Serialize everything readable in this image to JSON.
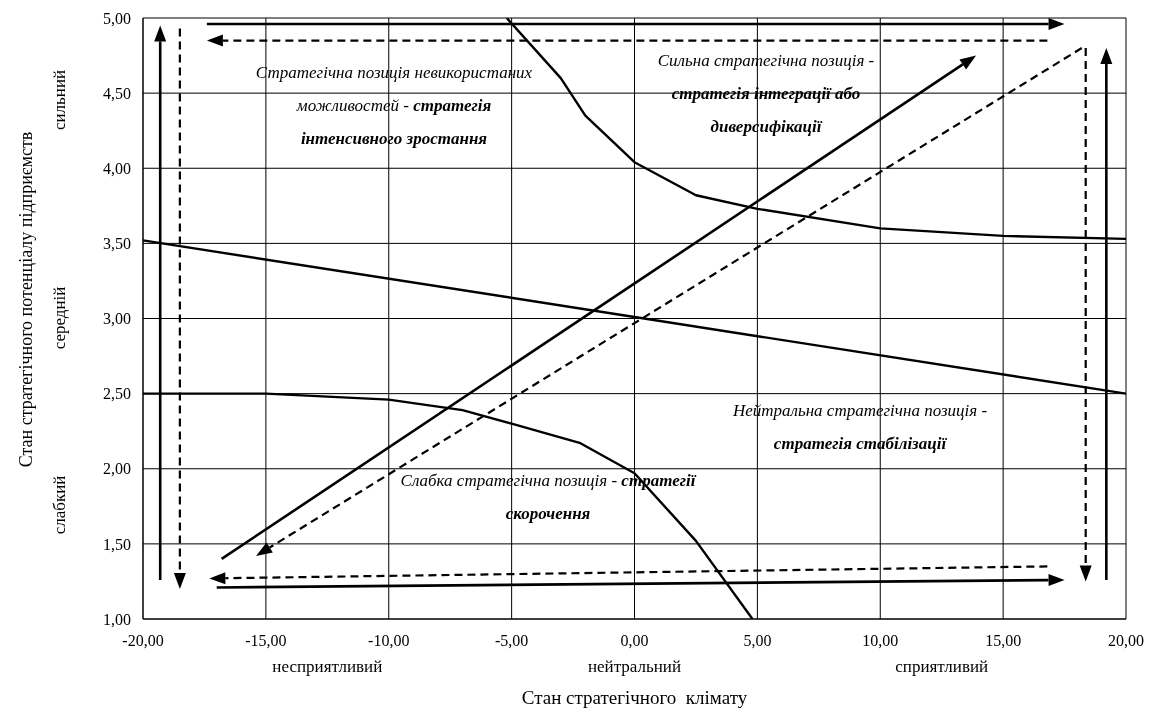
{
  "chart_data": {
    "type": "line",
    "xlabel": "Стан стратегічного  клімату",
    "ylabel": "Стан стратегічного потенціалу підприємств",
    "xlim": [
      -20,
      20
    ],
    "xticks": [
      {
        "value": -20,
        "label": "-20,00"
      },
      {
        "value": -15,
        "label": "-15,00"
      },
      {
        "value": -10,
        "label": "-10,00"
      },
      {
        "value": -5,
        "label": "-5,00"
      },
      {
        "value": 0,
        "label": "0,00"
      },
      {
        "value": 5,
        "label": "5,00"
      },
      {
        "value": 10,
        "label": "10,00"
      },
      {
        "value": 15,
        "label": "15,00"
      },
      {
        "value": 20,
        "label": "20,00"
      }
    ],
    "ylim": [
      1,
      5
    ],
    "yticks": [
      {
        "value": 1,
        "label": "1,00"
      },
      {
        "value": 1.5,
        "label": "1,50"
      },
      {
        "value": 2,
        "label": "2,00"
      },
      {
        "value": 2.5,
        "label": "2,50"
      },
      {
        "value": 3,
        "label": "3,00"
      },
      {
        "value": 3.5,
        "label": "3,50"
      },
      {
        "value": 4,
        "label": "4,00"
      },
      {
        "value": 4.5,
        "label": "4,50"
      },
      {
        "value": 5,
        "label": "5,00"
      }
    ],
    "grid": true,
    "marker": "none",
    "line_style": "solid",
    "series": [
      {
        "color": "#000000",
        "x": [
          -5.2,
          -3,
          -2,
          0,
          2.5,
          5,
          10,
          15,
          20
        ],
        "values": [
          5.0,
          4.6,
          4.35,
          4.04,
          3.82,
          3.73,
          3.6,
          3.55,
          3.53
        ]
      },
      {
        "color": "#000000",
        "x": [
          -20,
          0,
          20
        ],
        "values": [
          3.52,
          3.01,
          2.5
        ]
      },
      {
        "color": "#000000",
        "x": [
          -20,
          -15,
          -10,
          -7,
          -5,
          -2.2,
          0,
          2.5,
          4.8
        ],
        "values": [
          2.5,
          2.5,
          2.46,
          2.39,
          2.3,
          2.17,
          1.97,
          1.52,
          1.0
        ]
      }
    ],
    "annotations": [
      "Стратегічна позиція невикористаних можливостей - стратегія інтенсивного зростання",
      "Сильна стратегічна позиція - стратегія інтеграції або диверсифікації",
      "Слабка стратегічна позиція - стратегії скорочення",
      "Нейтральна стратегічна позиція - стратегія стабілізації",
      "несприятливий",
      "нейтральний",
      "сприятливий",
      "сильний",
      "середній",
      "слабкий"
    ]
  }
}
